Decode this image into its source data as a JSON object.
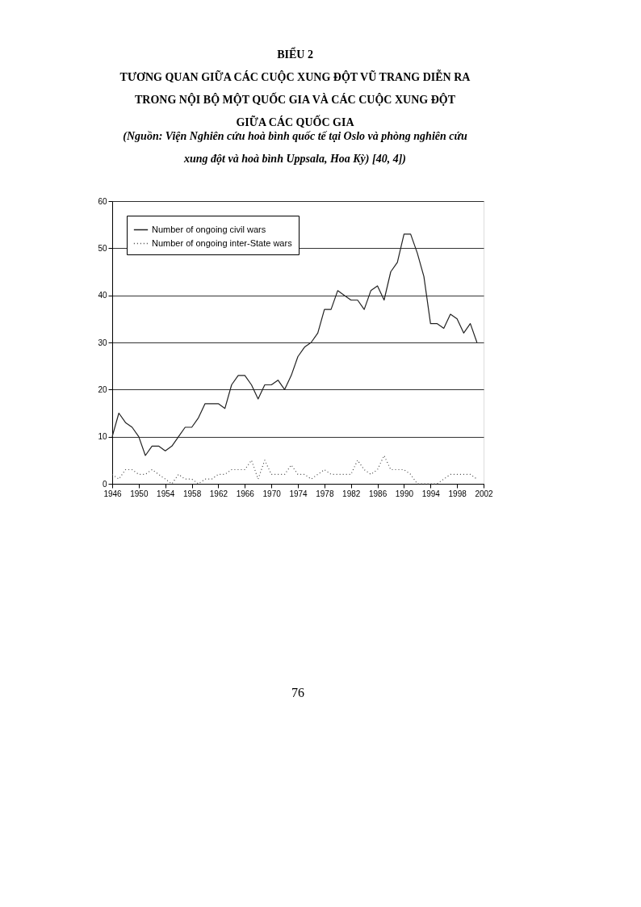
{
  "chart_data": {
    "type": "line",
    "title": "BIỂU 2\nTƯƠNG QUAN GIỮA CÁC CUỘC XUNG ĐỘT VŨ TRANG DIỄN RA\nTRONG NỘI BỘ MỘT QUỐC GIA VÀ CÁC CUỘC XUNG ĐỘT\nGIỮA CÁC QUỐC GIA",
    "subtitle": "(Nguồn: Viện Nghiên cứu hoà bình quốc tế tại Oslo và phòng nghiên cứu\nxung đột và hoà bình Uppsala, Hoa Kỳ) [40, 4])",
    "x": [
      1946,
      1947,
      1948,
      1949,
      1950,
      1951,
      1952,
      1953,
      1954,
      1955,
      1956,
      1957,
      1958,
      1959,
      1960,
      1961,
      1962,
      1963,
      1964,
      1965,
      1966,
      1967,
      1968,
      1969,
      1970,
      1971,
      1972,
      1973,
      1974,
      1975,
      1976,
      1977,
      1978,
      1979,
      1980,
      1981,
      1982,
      1983,
      1984,
      1985,
      1986,
      1987,
      1988,
      1989,
      1990,
      1991,
      1992,
      1993,
      1994,
      1995,
      1996,
      1997,
      1998,
      1999,
      2000,
      2001
    ],
    "series": [
      {
        "name": "Number of ongoing civil wars",
        "color": "#222222",
        "line_style": "solid",
        "values": [
          10,
          15,
          13,
          12,
          10,
          6,
          8,
          8,
          7,
          8,
          10,
          12,
          12,
          14,
          17,
          17,
          17,
          16,
          21,
          23,
          23,
          21,
          18,
          21,
          21,
          22,
          20,
          23,
          27,
          29,
          30,
          32,
          37,
          37,
          41,
          40,
          39,
          39,
          37,
          41,
          42,
          39,
          45,
          47,
          53,
          53,
          49,
          44,
          34,
          34,
          33,
          36,
          35,
          32,
          34,
          30
        ]
      },
      {
        "name": "Number of ongoing inter-State wars",
        "color": "#444444",
        "line_style": "dotted",
        "values": [
          2,
          1,
          3,
          3,
          2,
          2,
          3,
          2,
          1,
          0,
          2,
          1,
          1,
          0,
          1,
          1,
          2,
          2,
          3,
          3,
          3,
          5,
          1,
          5,
          2,
          2,
          2,
          4,
          2,
          2,
          1,
          2,
          3,
          2,
          2,
          2,
          2,
          5,
          3,
          2,
          3,
          6,
          3,
          3,
          3,
          2,
          0,
          0,
          0,
          0,
          1,
          2,
          2,
          2,
          2,
          1
        ]
      }
    ],
    "xlim": [
      1946,
      2002
    ],
    "xticks": [
      1946,
      1950,
      1954,
      1958,
      1962,
      1966,
      1970,
      1974,
      1978,
      1982,
      1986,
      1990,
      1994,
      1998,
      2002
    ],
    "ylim": [
      0,
      60
    ],
    "yticks": [
      0,
      10,
      20,
      30,
      40,
      50,
      60
    ],
    "grid": "y",
    "legend": "top left",
    "marker": "none",
    "annotations": [
      "76"
    ]
  }
}
